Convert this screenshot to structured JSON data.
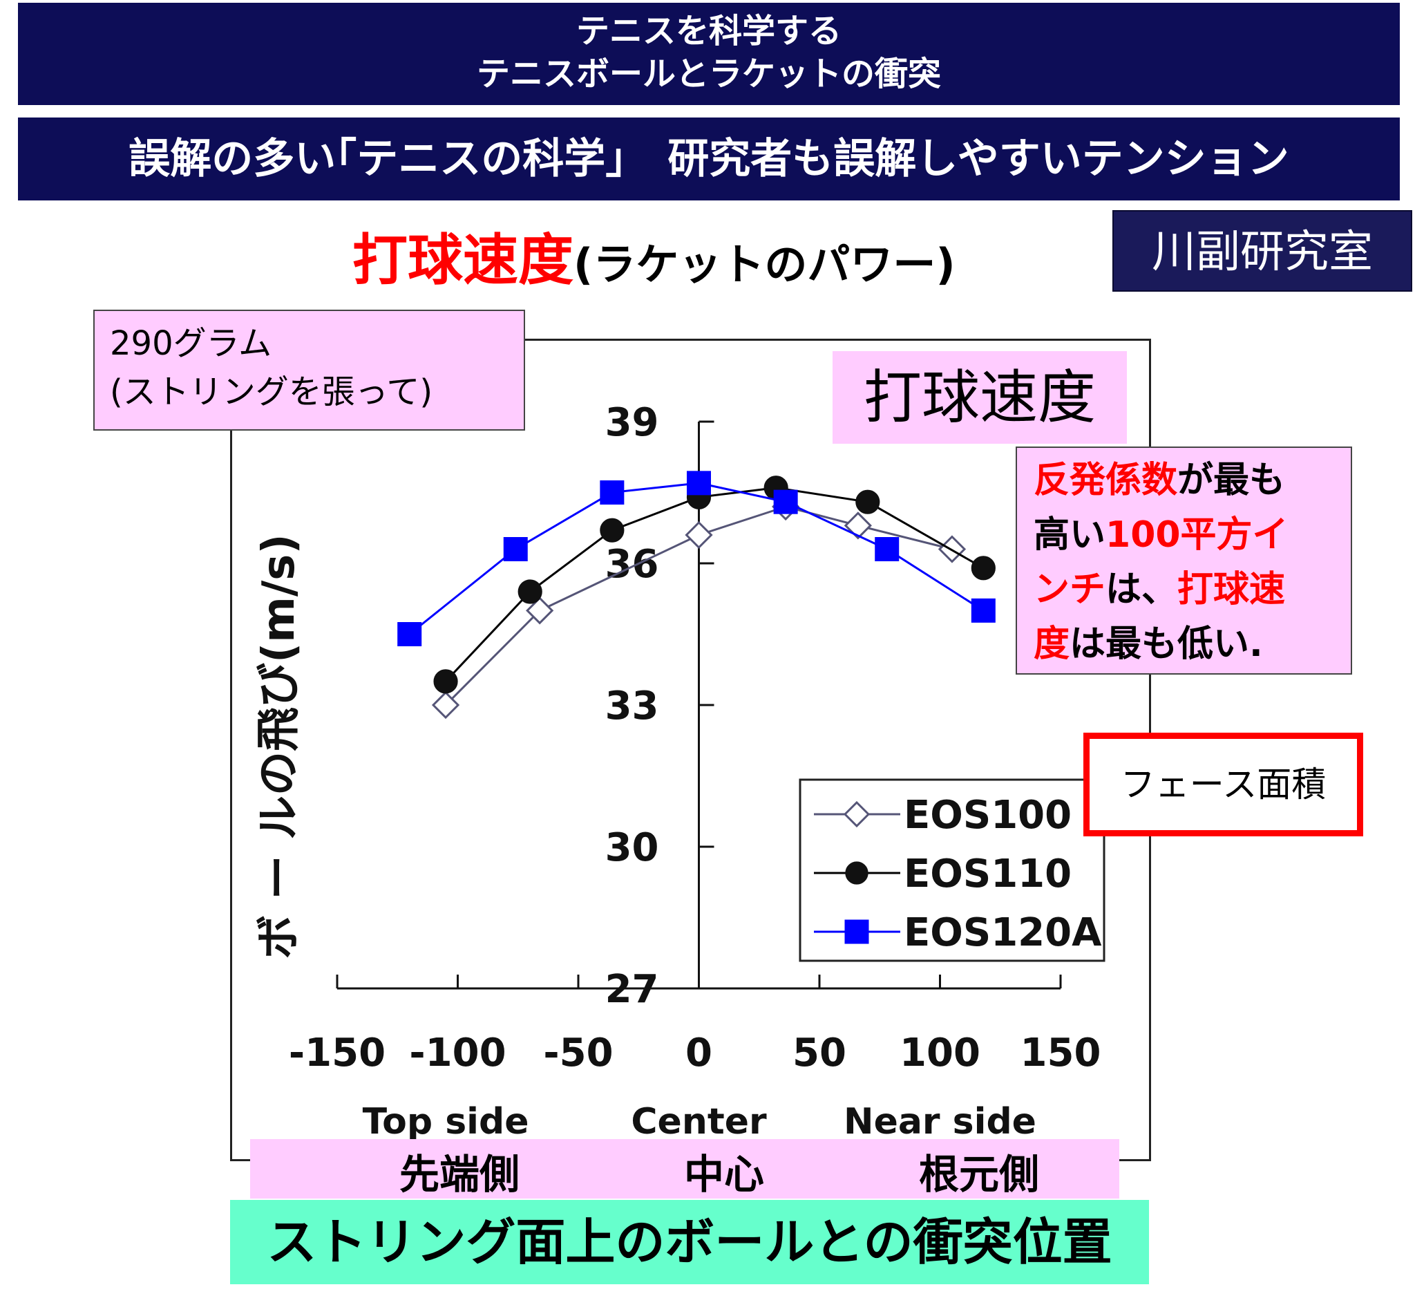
{
  "header": {
    "line1": "テニスを科学する",
    "line2": "テニスボールとラケットの衝突",
    "banner": "誤解の多い｢テニスの科学｣　研究者も誤解しやすいテンション"
  },
  "subtitle": {
    "main": "打球速度",
    "paren": "(ラケットのパワー)"
  },
  "lab": "川副研究室",
  "weight_box": {
    "line1": "290グラム",
    "line2": "(ストリングを張って)"
  },
  "speed_label": "打球速度",
  "note": {
    "p1_red": "反発係数",
    "p1": "が最も",
    "p2": "高い",
    "p2_red": "100平方イ",
    "p3_red": "ンチ",
    "p3": "は、",
    "p3_red2": "打球速",
    "p4_red": "度",
    "p4": "は最も低い."
  },
  "face_area": "フェース面積",
  "positions_jp": {
    "tip": "先端側",
    "center": "中心",
    "base": "根元側"
  },
  "caption": "ストリング面上のボールとの衝突位置",
  "colors": {
    "navy": "#0d0d57",
    "pink": "#ffccff",
    "mint": "#66ffcc",
    "red": "#ff0000",
    "blue_series": "#0000ff"
  },
  "chart_data": {
    "type": "line",
    "ylabel": "ボ ー ルの飛び(m/s)",
    "xlim": [
      -150,
      150
    ],
    "ylim": [
      27,
      39
    ],
    "x_ticks": [
      "-150",
      "-100",
      "-50",
      "0",
      "50",
      "100",
      "150"
    ],
    "x_tick_values": [
      -150,
      -100,
      -50,
      0,
      50,
      100,
      150
    ],
    "y_ticks": [
      "27",
      "30",
      "33",
      "36",
      "39"
    ],
    "y_tick_values": [
      27,
      30,
      33,
      36,
      39
    ],
    "x_side_labels": [
      "Top side",
      "Center",
      "Near side"
    ],
    "x_side_values": [
      -105,
      0,
      100
    ],
    "legend": [
      "EOS100",
      "EOS110",
      "EOS120A"
    ],
    "legend_position": "lower-right",
    "series": [
      {
        "name": "EOS100",
        "marker": "diamond-open",
        "color": "#555577",
        "points": [
          [
            -105,
            33.0
          ],
          [
            -66,
            35.0
          ],
          [
            0,
            36.6
          ],
          [
            36,
            37.2
          ],
          [
            66,
            36.8
          ],
          [
            105,
            36.3
          ]
        ]
      },
      {
        "name": "EOS110",
        "marker": "circle-filled",
        "color": "#000000",
        "points": [
          [
            -105,
            33.5
          ],
          [
            -70,
            35.4
          ],
          [
            -36,
            36.7
          ],
          [
            0,
            37.4
          ],
          [
            32,
            37.6
          ],
          [
            70,
            37.3
          ],
          [
            118,
            35.9
          ]
        ]
      },
      {
        "name": "EOS120A",
        "marker": "square-filled",
        "color": "#0000ff",
        "points": [
          [
            -120,
            34.5
          ],
          [
            -76,
            36.3
          ],
          [
            -36,
            37.5
          ],
          [
            0,
            37.7
          ],
          [
            36,
            37.3
          ],
          [
            78,
            36.3
          ],
          [
            118,
            35.0
          ]
        ]
      }
    ]
  }
}
